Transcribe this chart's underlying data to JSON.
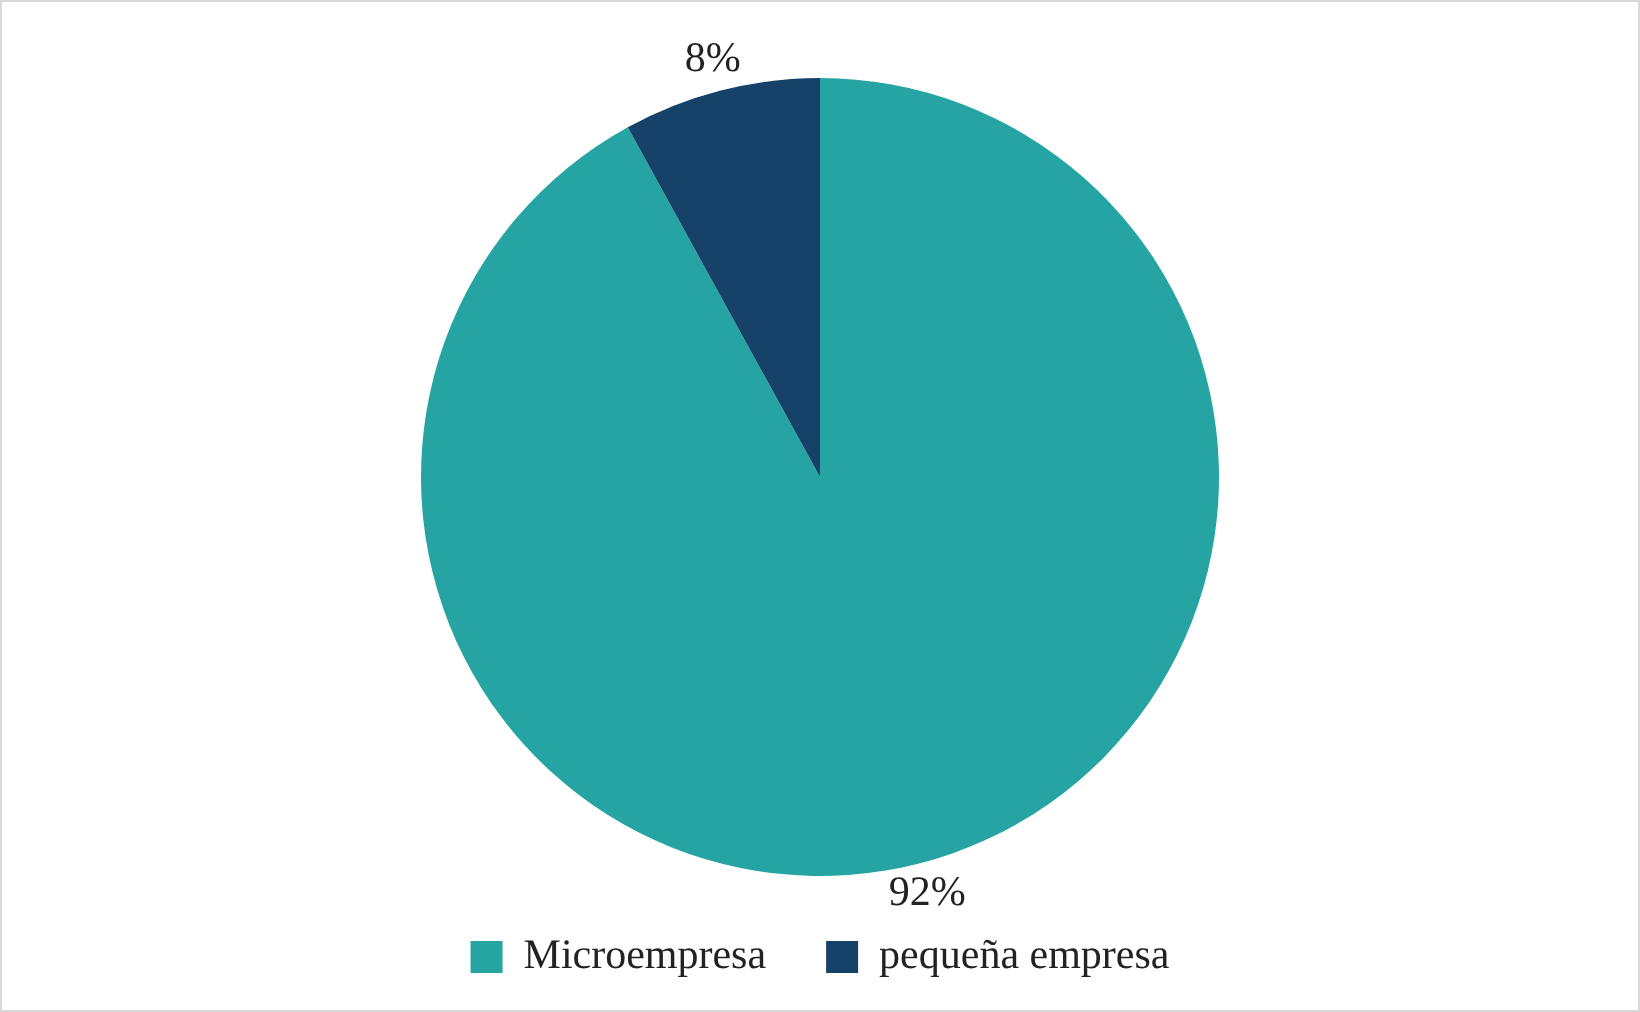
{
  "chart_data": {
    "type": "pie",
    "categories": [
      "Microempresa",
      "pequeña empresa"
    ],
    "values": [
      92,
      8
    ],
    "colors": [
      "#26a4a4",
      "#16426a"
    ],
    "value_labels": [
      "92%",
      "8%"
    ],
    "legend": "bottom"
  }
}
